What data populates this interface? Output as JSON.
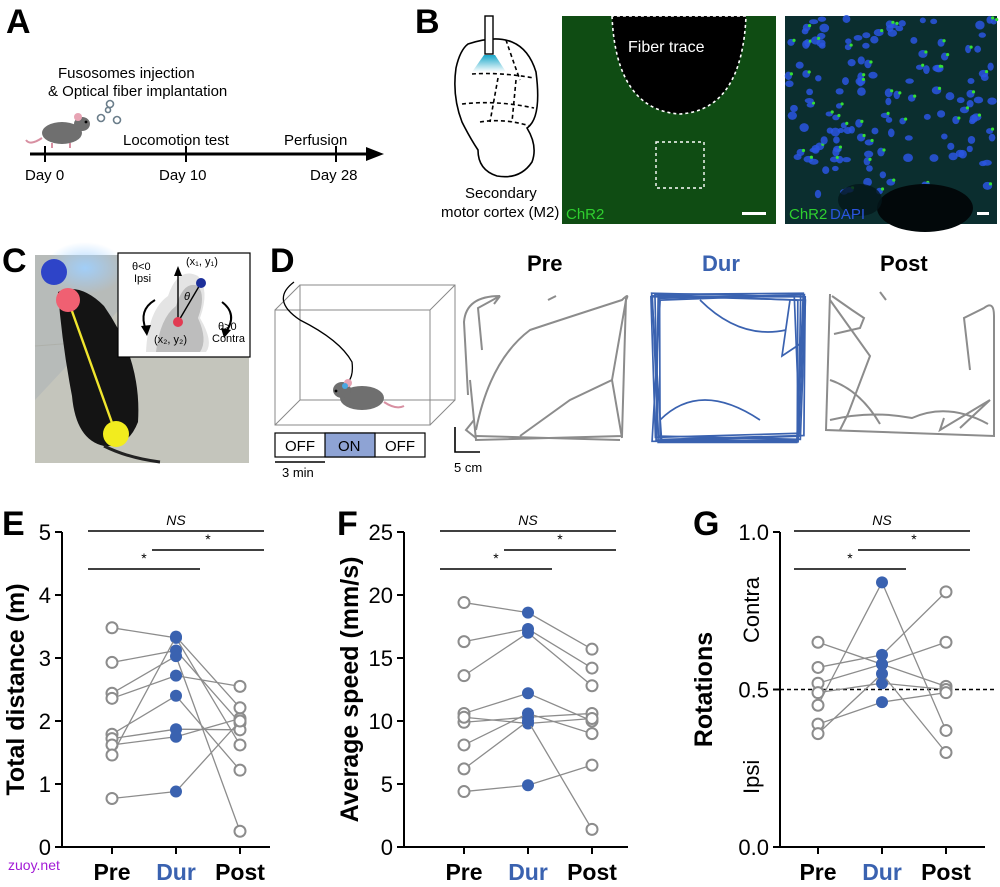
{
  "panels": {
    "a": {
      "letter": "A",
      "injection_line1": "Fusosomes injection",
      "injection_line2": "& Optical fiber implantation",
      "locomotion": "Locomotion test",
      "perfusion": "Perfusion",
      "days": [
        "Day 0",
        "Day 10",
        "Day 28"
      ]
    },
    "b": {
      "letter": "B",
      "region_line1": "Secondary",
      "region_line2": "motor cortex (M2)",
      "fiber_trace": "Fiber trace",
      "stain1": "ChR2",
      "stain2": "ChR2",
      "stain3": "DAPI"
    },
    "c": {
      "letter": "C",
      "theta_neg": "θ<0",
      "ipsi": "Ipsi",
      "theta_pos": "θ>0",
      "contra": "Contra",
      "p1": "(x₁, y₁)",
      "p2": "(x₂, y₂)",
      "theta": "θ"
    },
    "d": {
      "letter": "D",
      "off1": "OFF",
      "on": "ON",
      "off2": "OFF",
      "time": "3 min",
      "scale": "5 cm",
      "titles": [
        "Pre",
        "Dur",
        "Post"
      ]
    },
    "e": {
      "letter": "E"
    },
    "f": {
      "letter": "F"
    },
    "g": {
      "letter": "G",
      "contra": "Contra",
      "ipsi": "Ipsi"
    }
  },
  "colors": {
    "dur": "#3a62b0",
    "grey": "#8c8c8c",
    "chr2": "#2fd02f",
    "dapi": "#2a55e0"
  },
  "chart_data": [
    {
      "type": "line",
      "ylabel": "Total distance (m)",
      "categories": [
        "Pre",
        "Dur",
        "Post"
      ],
      "ylim": [
        0,
        5
      ],
      "yticks": [
        "0",
        "1",
        "2",
        "3",
        "4",
        "5"
      ],
      "significance": [
        {
          "from": "Pre",
          "to": "Post",
          "label": "NS"
        },
        {
          "from": "Pre",
          "to": "Dur",
          "label": "*"
        },
        {
          "from": "Dur",
          "to": "Post",
          "label": "*"
        }
      ],
      "series": [
        {
          "values": [
            3.48,
            3.32,
            1.62
          ]
        },
        {
          "values": [
            2.93,
            3.12,
            1.97
          ]
        },
        {
          "values": [
            2.44,
            3.03,
            0.25
          ]
        },
        {
          "values": [
            2.36,
            2.72,
            2.55
          ]
        },
        {
          "values": [
            1.79,
            2.4,
            1.22
          ]
        },
        {
          "values": [
            1.72,
            1.87,
            1.86
          ]
        },
        {
          "values": [
            1.62,
            1.75,
            2.04
          ]
        },
        {
          "values": [
            1.46,
            3.34,
            2.21
          ]
        },
        {
          "values": [
            0.77,
            0.88,
            2.0
          ]
        }
      ]
    },
    {
      "type": "line",
      "ylabel": "Average speed (mm/s)",
      "categories": [
        "Pre",
        "Dur",
        "Post"
      ],
      "ylim": [
        0,
        25
      ],
      "yticks": [
        "0",
        "5",
        "10",
        "15",
        "20",
        "25"
      ],
      "significance": [
        {
          "from": "Pre",
          "to": "Post",
          "label": "NS"
        },
        {
          "from": "Pre",
          "to": "Dur",
          "label": "*"
        },
        {
          "from": "Dur",
          "to": "Post",
          "label": "*"
        }
      ],
      "series": [
        {
          "values": [
            19.4,
            18.6,
            15.7
          ]
        },
        {
          "values": [
            16.3,
            17.3,
            14.2
          ]
        },
        {
          "values": [
            13.6,
            17.0,
            12.8
          ]
        },
        {
          "values": [
            10.6,
            12.2,
            10.0
          ]
        },
        {
          "values": [
            9.9,
            10.3,
            10.6
          ]
        },
        {
          "values": [
            10.3,
            9.8,
            10.2
          ]
        },
        {
          "values": [
            8.1,
            10.6,
            9.0
          ]
        },
        {
          "values": [
            6.2,
            10.0,
            1.4
          ]
        },
        {
          "values": [
            4.4,
            4.9,
            6.5
          ]
        }
      ]
    },
    {
      "type": "line",
      "ylabel": "Rotations",
      "categories": [
        "Pre",
        "Dur",
        "Post"
      ],
      "ylim": [
        0,
        1
      ],
      "yticks": [
        "0.0",
        "0.5",
        "1.0"
      ],
      "reference_line": 0.5,
      "significance": [
        {
          "from": "Pre",
          "to": "Post",
          "label": "NS"
        },
        {
          "from": "Pre",
          "to": "Dur",
          "label": "*"
        },
        {
          "from": "Dur",
          "to": "Post",
          "label": "*"
        }
      ],
      "series": [
        {
          "values": [
            0.65,
            0.58,
            0.65
          ]
        },
        {
          "values": [
            0.57,
            0.61,
            0.81
          ]
        },
        {
          "values": [
            0.52,
            0.58,
            0.51
          ]
        },
        {
          "values": [
            0.49,
            0.52,
            0.5
          ]
        },
        {
          "values": [
            0.45,
            0.84,
            0.37
          ]
        },
        {
          "values": [
            0.39,
            0.46,
            0.49
          ]
        },
        {
          "values": [
            0.36,
            0.55,
            0.3
          ]
        }
      ]
    }
  ],
  "watermark": "zuoy.net"
}
